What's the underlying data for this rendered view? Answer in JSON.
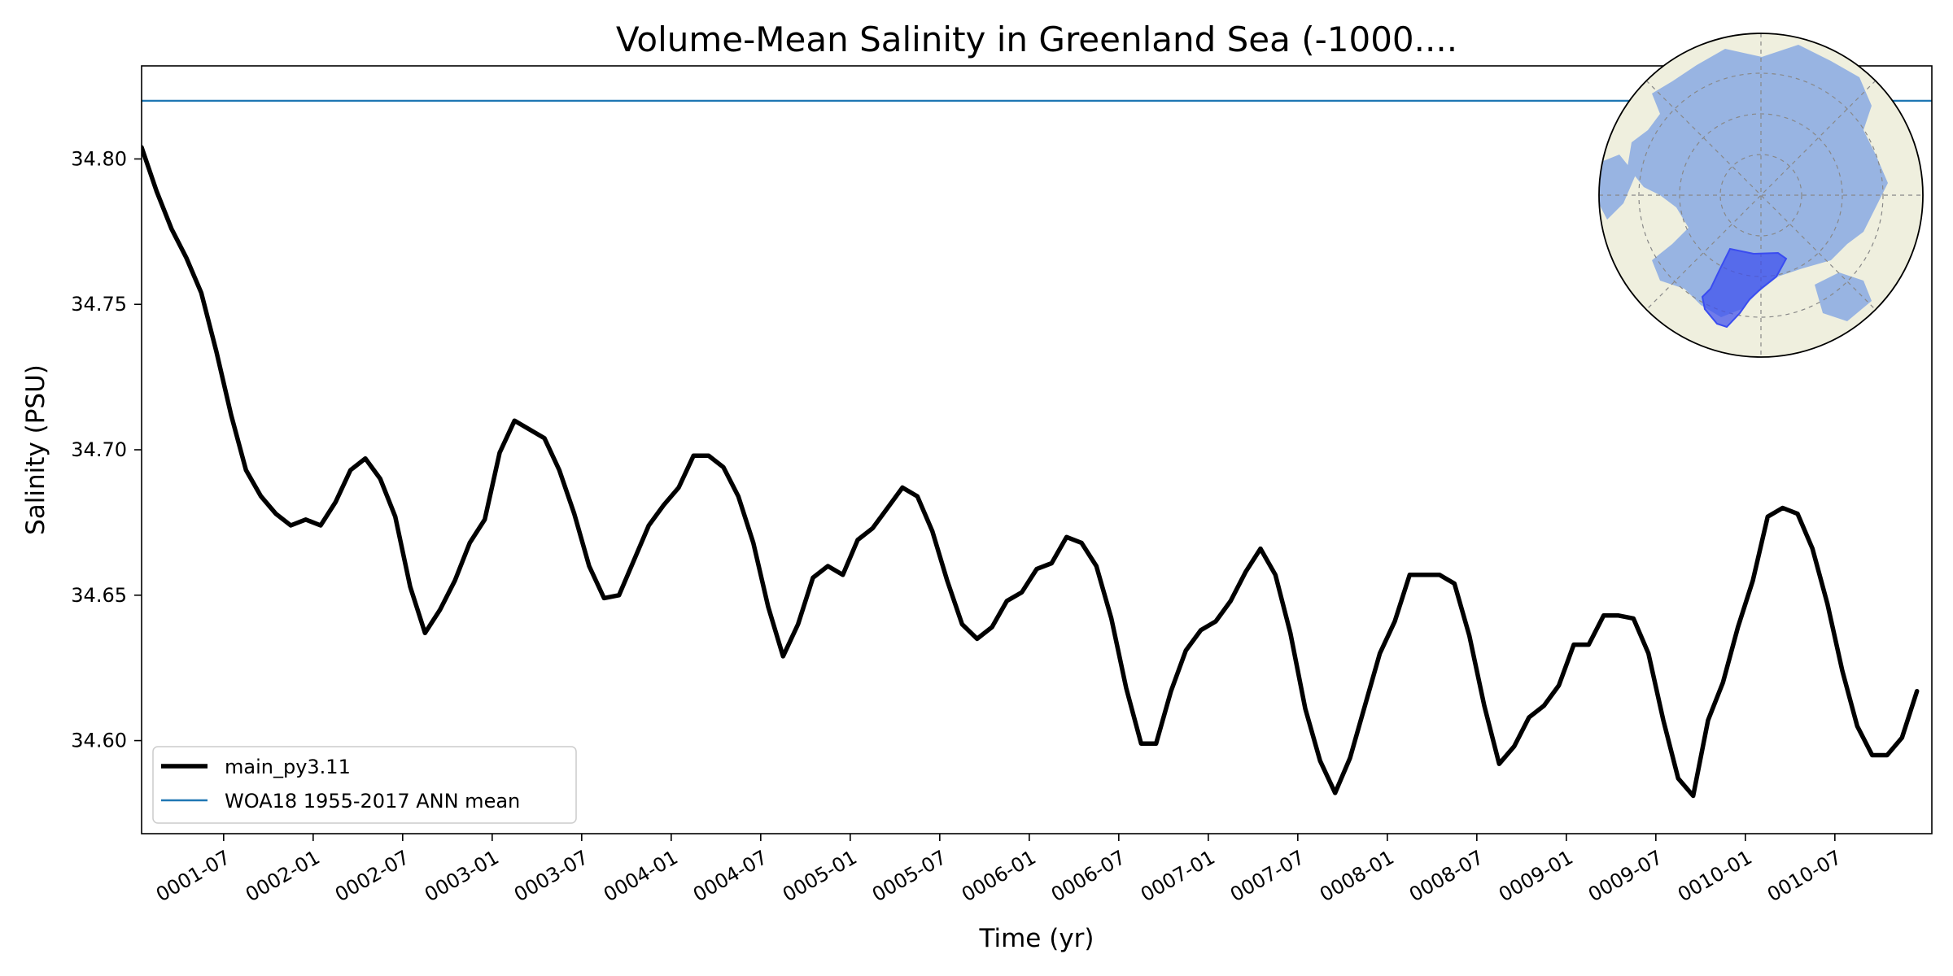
{
  "chart_data": {
    "type": "line",
    "title": "Volume-Mean Salinity in Greenland Sea (-1000....",
    "xlabel": "Time (yr)",
    "ylabel": "Salinity (PSU)",
    "x_tick_labels": [
      "0001-07",
      "0002-01",
      "0002-07",
      "0003-01",
      "0003-07",
      "0004-01",
      "0004-07",
      "0005-01",
      "0005-07",
      "0006-01",
      "0006-07",
      "0007-01",
      "0007-07",
      "0008-01",
      "0008-07",
      "0009-01",
      "0009-07",
      "0010-01",
      "0010-07"
    ],
    "y_ticks": [
      34.6,
      34.65,
      34.7,
      34.75,
      34.8
    ],
    "y_tick_labels": [
      "34.60",
      "34.65",
      "34.70",
      "34.75",
      "34.80"
    ],
    "ylim": [
      34.568,
      34.832
    ],
    "x_range_months": [
      0.5,
      120.5
    ],
    "legend_position": "lower-left",
    "grid": false,
    "series": [
      {
        "name": "main_py3.11",
        "color": "#000000",
        "style": "thick-line",
        "values": [
          34.804,
          34.789,
          34.776,
          34.766,
          34.754,
          34.734,
          34.712,
          34.693,
          34.684,
          34.678,
          34.674,
          34.676,
          34.674,
          34.682,
          34.693,
          34.697,
          34.69,
          34.677,
          34.653,
          34.637,
          34.645,
          34.655,
          34.668,
          34.676,
          34.699,
          34.71,
          34.707,
          34.704,
          34.693,
          34.678,
          34.66,
          34.649,
          34.65,
          34.662,
          34.674,
          34.681,
          34.687,
          34.698,
          34.698,
          34.694,
          34.684,
          34.668,
          34.646,
          34.629,
          34.64,
          34.656,
          34.66,
          34.657,
          34.669,
          34.673,
          34.68,
          34.687,
          34.684,
          34.672,
          34.655,
          34.64,
          34.635,
          34.639,
          34.648,
          34.651,
          34.659,
          34.661,
          34.67,
          34.668,
          34.66,
          34.642,
          34.618,
          34.599,
          34.599,
          34.617,
          34.631,
          34.638,
          34.641,
          34.648,
          34.658,
          34.666,
          34.657,
          34.637,
          34.611,
          34.593,
          34.582,
          34.594,
          34.612,
          34.63,
          34.641,
          34.657,
          34.657,
          34.657,
          34.654,
          34.636,
          34.612,
          34.592,
          34.598,
          34.608,
          34.612,
          34.619,
          34.633,
          34.633,
          34.643,
          34.643,
          34.642,
          34.63,
          34.607,
          34.587,
          34.581,
          34.607,
          34.62,
          34.639,
          34.655,
          34.677,
          34.68,
          34.678,
          34.666,
          34.647,
          34.624,
          34.605,
          34.595,
          34.595,
          34.601,
          34.617
        ]
      },
      {
        "name": "WOA18 1955-2017 ANN mean",
        "color": "#1f77b4",
        "style": "thin-line",
        "constant": 34.82
      }
    ]
  },
  "inset_map": {
    "description_icon": "north-polar-stereographic-map-icon",
    "ocean_color": "#98b4e2",
    "land_color": "#efefde",
    "region_color": "#3a4cf0"
  }
}
